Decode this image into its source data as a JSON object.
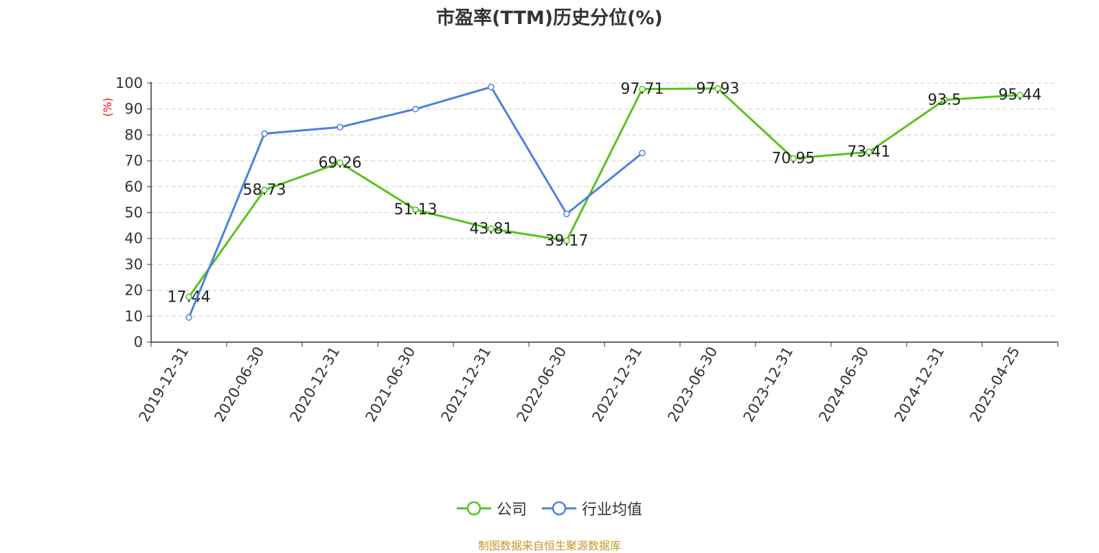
{
  "colors": {
    "company": "#52c41a",
    "industry": "#4a80dc",
    "axis": "#333333",
    "grid": "#cccccc",
    "ylabel": "#ff0000",
    "source": "#c8942a"
  },
  "source_text": "制图数据来自恒生聚源数据库",
  "chart_data": {
    "type": "line",
    "title": "市盈率(TTM)历史分位(%)",
    "xlabel": "",
    "ylabel": "(%)",
    "ylim": [
      0,
      100
    ],
    "yticks": [
      0,
      10,
      20,
      30,
      40,
      50,
      60,
      70,
      80,
      90,
      100
    ],
    "grid": true,
    "legend_position": "bottom",
    "categories": [
      "2019-12-31",
      "2020-06-30",
      "2020-12-31",
      "2021-06-30",
      "2021-12-31",
      "2022-06-30",
      "2022-12-31",
      "2023-06-30",
      "2023-12-31",
      "2024-06-30",
      "2024-12-31",
      "2025-04-25"
    ],
    "series": [
      {
        "name": "公司",
        "color": "#52c41a",
        "show_labels": true,
        "values": [
          17.44,
          58.73,
          69.26,
          51.13,
          43.81,
          39.17,
          97.71,
          97.93,
          70.95,
          73.41,
          93.5,
          95.44
        ]
      },
      {
        "name": "行业均值",
        "color": "#4a80dc",
        "show_labels": false,
        "values": [
          9.5,
          80.5,
          83.0,
          90.0,
          98.5,
          49.5,
          73.0,
          null,
          null,
          null,
          null,
          null
        ]
      }
    ]
  }
}
